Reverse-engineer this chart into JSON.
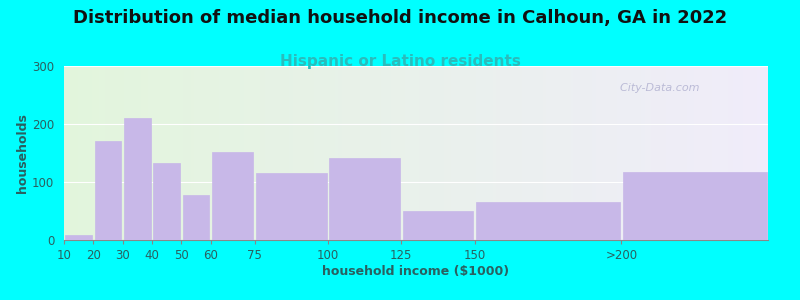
{
  "title": "Distribution of median household income in Calhoun, GA in 2022",
  "subtitle": "Hispanic or Latino residents",
  "xlabel": "household income ($1000)",
  "ylabel": "households",
  "background_outer": "#00FFFF",
  "bar_color": "#C8B8E8",
  "bar_edge_color": "#B5A8D8",
  "categories": [
    "10",
    "20",
    "30",
    "40",
    "50",
    "60",
    "75",
    "100",
    "125",
    "150",
    ">200"
  ],
  "values": [
    8,
    170,
    210,
    133,
    78,
    152,
    115,
    142,
    50,
    65,
    117
  ],
  "bar_lefts": [
    10,
    20,
    30,
    40,
    50,
    60,
    75,
    100,
    125,
    150,
    200
  ],
  "bar_widths": [
    10,
    10,
    10,
    10,
    10,
    15,
    25,
    25,
    25,
    50,
    50
  ],
  "xlim": [
    10,
    250
  ],
  "ylim": [
    0,
    300
  ],
  "yticks": [
    0,
    100,
    200,
    300
  ],
  "xtick_positions": [
    10,
    20,
    30,
    40,
    50,
    60,
    75,
    100,
    125,
    150,
    200
  ],
  "xtick_labels": [
    "10",
    "20",
    "30",
    "40",
    "50",
    "60",
    "75",
    "100",
    "125",
    "150",
    ">200"
  ],
  "title_fontsize": 13,
  "subtitle_fontsize": 11,
  "subtitle_color": "#2ABCBC",
  "axis_label_fontsize": 9,
  "tick_fontsize": 8.5,
  "tick_color": "#2A6060",
  "watermark": "  City-Data.com",
  "plot_bg_left_color": "#E2F5DC",
  "plot_bg_right_color": "#F0ECFA"
}
